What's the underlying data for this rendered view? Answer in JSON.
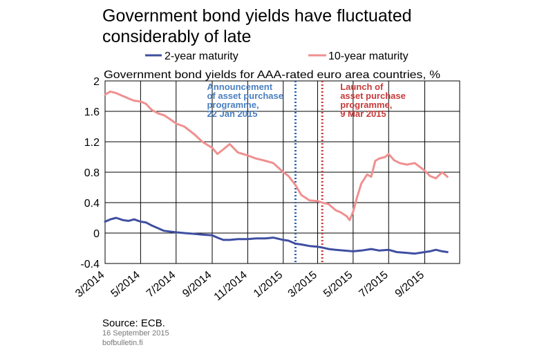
{
  "chart_data": {
    "type": "line",
    "title": "Government bond yields have fluctuated considerably of late",
    "subtitle": "Government bond yields for AAA-rated euro area countries, %",
    "xlabel": "",
    "ylabel": "",
    "ylim": [
      -0.4,
      2
    ],
    "yticks": [
      "2",
      "1.6",
      "1.2",
      "0.8",
      "0.4",
      "0",
      "-0.4"
    ],
    "xlim": [
      "2014-03-01",
      "2015-10-31"
    ],
    "xticks": [
      "3/2014",
      "5/2014",
      "7/2014",
      "9/2014",
      "11/2014",
      "1/2015",
      "3/2015",
      "5/2015",
      "7/2015",
      "9/2015"
    ],
    "grid": true,
    "legend": "top",
    "series": [
      {
        "name": "2-year maturity",
        "color": "#3f4ea1",
        "x": [
          "2014-03-01",
          "2014-03-10",
          "2014-03-20",
          "2014-04-01",
          "2014-04-10",
          "2014-04-20",
          "2014-05-01",
          "2014-05-10",
          "2014-05-20",
          "2014-06-01",
          "2014-06-10",
          "2014-06-20",
          "2014-07-01",
          "2014-07-15",
          "2014-08-01",
          "2014-08-15",
          "2014-09-01",
          "2014-09-10",
          "2014-09-20",
          "2014-10-01",
          "2014-10-15",
          "2014-11-01",
          "2014-11-15",
          "2014-12-01",
          "2014-12-15",
          "2015-01-01",
          "2015-01-10",
          "2015-01-22",
          "2015-02-01",
          "2015-02-15",
          "2015-03-01",
          "2015-03-09",
          "2015-03-20",
          "2015-04-01",
          "2015-04-15",
          "2015-05-01",
          "2015-05-15",
          "2015-06-01",
          "2015-06-15",
          "2015-07-01",
          "2015-07-15",
          "2015-08-01",
          "2015-08-15",
          "2015-09-01",
          "2015-09-10",
          "2015-09-20",
          "2015-10-01",
          "2015-10-10"
        ],
        "values": [
          0.15,
          0.18,
          0.2,
          0.17,
          0.16,
          0.18,
          0.15,
          0.14,
          0.1,
          0.06,
          0.03,
          0.02,
          0.01,
          0.0,
          -0.01,
          -0.02,
          -0.03,
          -0.06,
          -0.09,
          -0.09,
          -0.08,
          -0.08,
          -0.07,
          -0.07,
          -0.06,
          -0.09,
          -0.1,
          -0.14,
          -0.15,
          -0.17,
          -0.18,
          -0.19,
          -0.21,
          -0.22,
          -0.23,
          -0.24,
          -0.23,
          -0.21,
          -0.23,
          -0.22,
          -0.25,
          -0.26,
          -0.27,
          -0.25,
          -0.24,
          -0.22,
          -0.24,
          -0.25
        ]
      },
      {
        "name": "10-year maturity",
        "color": "#f08f8f",
        "x": [
          "2014-03-01",
          "2014-03-10",
          "2014-03-20",
          "2014-04-01",
          "2014-04-10",
          "2014-04-20",
          "2014-05-01",
          "2014-05-10",
          "2014-05-20",
          "2014-06-01",
          "2014-06-10",
          "2014-06-20",
          "2014-07-01",
          "2014-07-15",
          "2014-08-01",
          "2014-08-15",
          "2014-09-01",
          "2014-09-10",
          "2014-09-20",
          "2014-10-01",
          "2014-10-15",
          "2014-11-01",
          "2014-11-15",
          "2014-12-01",
          "2014-12-15",
          "2015-01-01",
          "2015-01-10",
          "2015-01-22",
          "2015-02-01",
          "2015-02-15",
          "2015-03-01",
          "2015-03-09",
          "2015-03-20",
          "2015-04-01",
          "2015-04-10",
          "2015-04-20",
          "2015-04-25",
          "2015-05-01",
          "2015-05-07",
          "2015-05-15",
          "2015-05-25",
          "2015-06-01",
          "2015-06-08",
          "2015-06-15",
          "2015-06-25",
          "2015-07-01",
          "2015-07-10",
          "2015-07-20",
          "2015-08-01",
          "2015-08-15",
          "2015-09-01",
          "2015-09-10",
          "2015-09-20",
          "2015-10-01",
          "2015-10-10"
        ],
        "values": [
          1.82,
          1.86,
          1.84,
          1.8,
          1.77,
          1.74,
          1.73,
          1.7,
          1.62,
          1.57,
          1.55,
          1.5,
          1.44,
          1.4,
          1.3,
          1.2,
          1.12,
          1.04,
          1.1,
          1.17,
          1.06,
          1.02,
          0.98,
          0.95,
          0.92,
          0.8,
          0.75,
          0.63,
          0.5,
          0.43,
          0.42,
          0.4,
          0.38,
          0.3,
          0.27,
          0.22,
          0.17,
          0.28,
          0.45,
          0.65,
          0.77,
          0.74,
          0.95,
          0.98,
          1.0,
          1.04,
          0.96,
          0.92,
          0.9,
          0.92,
          0.82,
          0.75,
          0.72,
          0.8,
          0.74
        ]
      }
    ],
    "annotations": [
      {
        "date": "2015-01-22",
        "color": "#2f63a6",
        "text_color": "#4a7fc0",
        "lines": [
          "Announcement",
          "of asset purchase",
          "programme,",
          "22 Jan 2015"
        ]
      },
      {
        "date": "2015-03-09",
        "color": "#c83a3a",
        "text_color": "#c83a3a",
        "lines": [
          "Launch of",
          "asset purchase",
          "programme,",
          "9 Mar 2015"
        ]
      }
    ]
  },
  "footer": {
    "source": "Source: ECB.",
    "date": "16 September 2015",
    "site": "bofbulletin.fi"
  }
}
